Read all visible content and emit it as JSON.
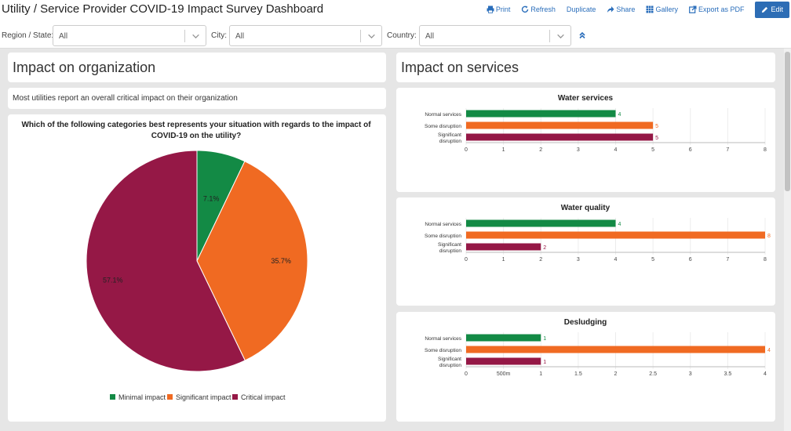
{
  "header": {
    "title": "Utility / Service Provider COVID-19 Impact Survey Dashboard",
    "actions": {
      "print": "Print",
      "refresh": "Refresh",
      "duplicate": "Duplicate",
      "share": "Share",
      "gallery": "Gallery",
      "export": "Export as PDF",
      "edit": "Edit"
    }
  },
  "filters": {
    "region": {
      "label": "Region / State:",
      "value": "All"
    },
    "city": {
      "label": "City:",
      "value": "All"
    },
    "country": {
      "label": "Country:",
      "value": "All"
    }
  },
  "left_panel": {
    "title": "Impact on organization",
    "summary": "Most utilities report an overall critical impact on their organization",
    "question": "Which of the following categories best represents your situation with regards to the impact of COVID-19 on the utility?"
  },
  "right_panel": {
    "title": "Impact on services"
  },
  "colors": {
    "minimal": "#138a45",
    "significant": "#f06a22",
    "critical": "#951846",
    "accent": "#2a6ebb"
  },
  "chart_data": [
    {
      "type": "pie",
      "title": "",
      "categories": [
        "Minimal impact",
        "Significant impact",
        "Critical impact"
      ],
      "values": [
        7.1,
        35.7,
        57.1
      ],
      "labels": [
        "7.1%",
        "35.7%",
        "57.1%"
      ],
      "legend": "bottom"
    },
    {
      "type": "bar",
      "orientation": "horizontal",
      "title": "Water services",
      "categories": [
        "Normal services",
        "Some disruption",
        "Significant disruption"
      ],
      "values": [
        4,
        5,
        5
      ],
      "xlim": [
        0,
        8
      ],
      "ticks": [
        "0",
        "1",
        "2",
        "3",
        "4",
        "5",
        "6",
        "7",
        "8"
      ]
    },
    {
      "type": "bar",
      "orientation": "horizontal",
      "title": "Water quality",
      "categories": [
        "Normal services",
        "Some disruption",
        "Significant disruption"
      ],
      "values": [
        4,
        8,
        2
      ],
      "xlim": [
        0,
        8
      ],
      "ticks": [
        "0",
        "1",
        "2",
        "3",
        "4",
        "5",
        "6",
        "7",
        "8"
      ]
    },
    {
      "type": "bar",
      "orientation": "horizontal",
      "title": "Desludging",
      "categories": [
        "Normal services",
        "Some disruption",
        "Significant disruption"
      ],
      "values": [
        1,
        4,
        1
      ],
      "xlim": [
        0,
        4
      ],
      "ticks": [
        "0",
        "500m",
        "1",
        "1.5",
        "2",
        "2.5",
        "3",
        "3.5",
        "4"
      ]
    }
  ]
}
